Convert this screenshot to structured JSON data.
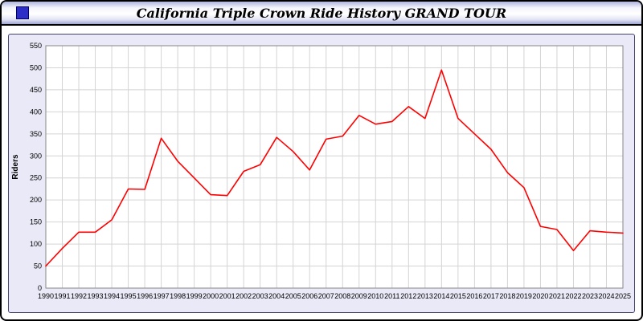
{
  "header": {
    "title": "California Triple Crown Ride History GRAND TOUR"
  },
  "icons": {
    "title_square_icon": "blue-square-icon"
  },
  "colors": {
    "line": "#ff0000",
    "panel_bg": "#e9e9f7",
    "plot_bg": "#ffffff",
    "grid": "#d4d4d4",
    "plot_border": "#888888",
    "axis_text": "#000000"
  },
  "chart_data": {
    "type": "line",
    "title": "California Triple Crown Ride History GRAND TOUR",
    "xlabel": "",
    "ylabel": "Riders",
    "ylim": [
      0,
      550
    ],
    "ytick_step": 50,
    "grid": true,
    "legend": "none",
    "categories": [
      1990,
      1991,
      1992,
      1993,
      1994,
      1995,
      1996,
      1997,
      1998,
      1999,
      2000,
      2001,
      2002,
      2003,
      2004,
      2005,
      2006,
      2007,
      2008,
      2009,
      2010,
      2011,
      2012,
      2013,
      2014,
      2015,
      2016,
      2017,
      2018,
      2019,
      2020,
      2021,
      2022,
      2023,
      2024,
      2025
    ],
    "series": [
      {
        "name": "Riders",
        "color": "#ff0000",
        "values": [
          50,
          90,
          127,
          127,
          155,
          225,
          224,
          340,
          288,
          250,
          212,
          210,
          265,
          280,
          342,
          310,
          268,
          338,
          345,
          392,
          372,
          378,
          412,
          385,
          495,
          385,
          350,
          315,
          262,
          228,
          140,
          133,
          85,
          130,
          127,
          125
        ]
      }
    ]
  }
}
